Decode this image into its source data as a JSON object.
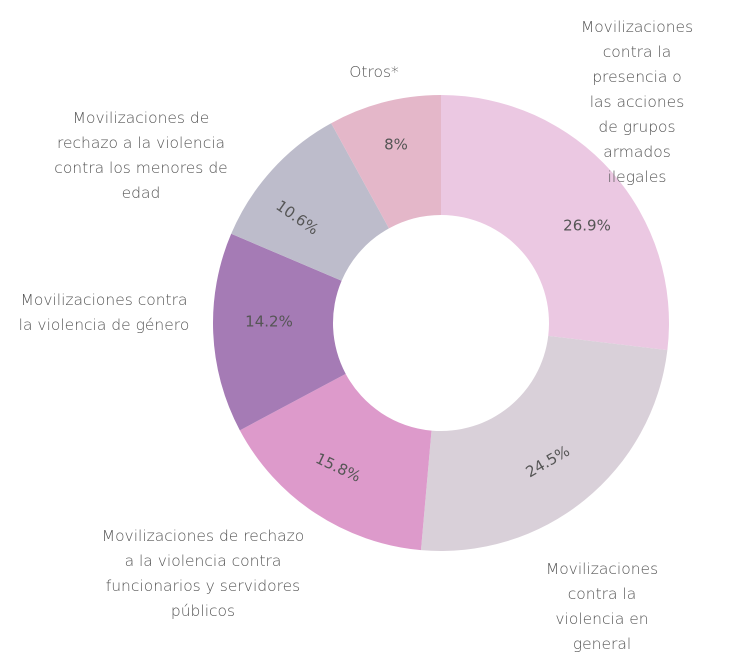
{
  "chart_data": {
    "type": "donut",
    "categories": [
      "Movilizaciones contra la\npresencia o las acciones\nde grupos armados\nilegales",
      "Movilizaciones contra la\nviolencia en general",
      "Movilizaciones de rechazo\na la violencia contra\nfuncionarios y servidores\npúblicos",
      "Movilizaciones contra\nla violencia de género",
      "Movilizaciones de\nrechazo a la violencia\ncontra los menores de\nedad",
      "Otros*"
    ],
    "values": [
      26.9,
      24.5,
      15.8,
      14.2,
      10.6,
      8
    ],
    "value_labels": [
      "26.9%",
      "24.5%",
      "15.8%",
      "14.2%",
      "10.6%",
      "8%"
    ],
    "colors": [
      "#ebc8e2",
      "#d9d0d9",
      "#dd9acb",
      "#a57bb5",
      "#bdbccb",
      "#e4b7c9"
    ]
  }
}
